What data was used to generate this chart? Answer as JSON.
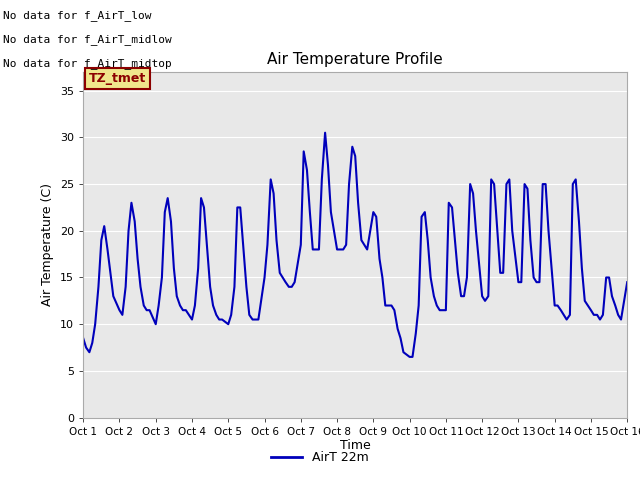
{
  "title": "Air Temperature Profile",
  "xlabel": "Time",
  "ylabel": "Air Temperature (C)",
  "ylim": [
    0,
    37
  ],
  "yticks": [
    0,
    5,
    10,
    15,
    20,
    25,
    30,
    35
  ],
  "line_color": "#0000bb",
  "line_width": 1.5,
  "bg_color": "#e8e8e8",
  "legend_label": "AirT 22m",
  "annotations_outside": [
    "No data for f_AirT_low",
    "No data for f_AirT_midlow",
    "No data for f_AirT_midtop"
  ],
  "tz_tmet_text": "TZ_tmet",
  "x_tick_labels": [
    "Oct 1",
    "Oct 2",
    "Oct 3",
    "Oct 4",
    "Oct 5",
    "Oct 6",
    "Oct 7",
    "Oct 8",
    "Oct 9",
    "Oct 10",
    "Oct 11",
    "Oct 12",
    "Oct 13",
    "Oct 14",
    "Oct 15",
    "Oct 16"
  ],
  "temperature_x": [
    1.0,
    1.08,
    1.17,
    1.25,
    1.33,
    1.42,
    1.5,
    1.58,
    1.67,
    1.75,
    1.83,
    2.0,
    2.08,
    2.17,
    2.25,
    2.33,
    2.42,
    2.5,
    2.58,
    2.67,
    2.75,
    2.83,
    3.0,
    3.08,
    3.17,
    3.25,
    3.33,
    3.42,
    3.5,
    3.58,
    3.67,
    3.75,
    3.83,
    4.0,
    4.08,
    4.17,
    4.25,
    4.33,
    4.42,
    4.5,
    4.58,
    4.67,
    4.75,
    4.83,
    5.0,
    5.08,
    5.17,
    5.25,
    5.33,
    5.42,
    5.5,
    5.58,
    5.67,
    5.75,
    5.83,
    6.0,
    6.08,
    6.17,
    6.25,
    6.33,
    6.42,
    6.5,
    6.58,
    6.67,
    6.75,
    6.83,
    7.0,
    7.08,
    7.17,
    7.25,
    7.33,
    7.42,
    7.5,
    7.58,
    7.67,
    7.75,
    7.83,
    8.0,
    8.08,
    8.17,
    8.25,
    8.33,
    8.42,
    8.5,
    8.58,
    8.67,
    8.75,
    8.83,
    9.0,
    9.08,
    9.17,
    9.25,
    9.33,
    9.42,
    9.5,
    9.58,
    9.67,
    9.75,
    9.83,
    10.0,
    10.08,
    10.17,
    10.25,
    10.33,
    10.42,
    10.5,
    10.58,
    10.67,
    10.75,
    10.83,
    11.0,
    11.08,
    11.17,
    11.25,
    11.33,
    11.42,
    11.5,
    11.58,
    11.67,
    11.75,
    11.83,
    12.0,
    12.08,
    12.17,
    12.25,
    12.33,
    12.42,
    12.5,
    12.58,
    12.67,
    12.75,
    12.83,
    13.0,
    13.08,
    13.17,
    13.25,
    13.33,
    13.42,
    13.5,
    13.58,
    13.67,
    13.75,
    13.83,
    14.0,
    14.08,
    14.17,
    14.25,
    14.33,
    14.42,
    14.5,
    14.58,
    14.67,
    14.75,
    14.83,
    15.0,
    15.08,
    15.17,
    15.25,
    15.33,
    15.42,
    15.5,
    15.58,
    15.67,
    15.75,
    15.83,
    16.0
  ],
  "temperature_y": [
    8.5,
    7.5,
    7.0,
    8.0,
    10.0,
    14.0,
    19.0,
    20.5,
    18.0,
    15.5,
    13.0,
    11.5,
    11.0,
    14.0,
    20.0,
    23.0,
    21.0,
    17.0,
    14.0,
    12.0,
    11.5,
    11.5,
    10.0,
    12.0,
    15.0,
    22.0,
    23.5,
    21.0,
    16.0,
    13.0,
    12.0,
    11.5,
    11.5,
    10.5,
    12.0,
    16.0,
    23.5,
    22.5,
    18.0,
    14.0,
    12.0,
    11.0,
    10.5,
    10.5,
    10.0,
    11.0,
    14.0,
    22.5,
    22.5,
    18.0,
    14.0,
    11.0,
    10.5,
    10.5,
    10.5,
    15.0,
    18.5,
    25.5,
    24.0,
    19.0,
    15.5,
    15.0,
    14.5,
    14.0,
    14.0,
    14.5,
    18.5,
    28.5,
    26.5,
    22.0,
    18.0,
    18.0,
    18.0,
    25.5,
    30.5,
    27.0,
    22.0,
    18.0,
    18.0,
    18.0,
    18.5,
    25.0,
    29.0,
    28.0,
    23.0,
    19.0,
    18.5,
    18.0,
    22.0,
    21.5,
    17.0,
    15.0,
    12.0,
    12.0,
    12.0,
    11.5,
    9.5,
    8.5,
    7.0,
    6.5,
    6.5,
    9.0,
    12.0,
    21.5,
    22.0,
    19.0,
    15.0,
    13.0,
    12.0,
    11.5,
    11.5,
    23.0,
    22.5,
    19.0,
    15.5,
    13.0,
    13.0,
    15.0,
    25.0,
    24.0,
    20.0,
    13.0,
    12.5,
    13.0,
    25.5,
    25.0,
    20.0,
    15.5,
    15.5,
    25.0,
    25.5,
    20.0,
    14.5,
    14.5,
    25.0,
    24.5,
    19.0,
    15.0,
    14.5,
    14.5,
    25.0,
    25.0,
    20.0,
    12.0,
    12.0,
    11.5,
    11.0,
    10.5,
    11.0,
    25.0,
    25.5,
    21.0,
    16.0,
    12.5,
    11.5,
    11.0,
    11.0,
    10.5,
    11.0,
    15.0,
    15.0,
    13.0,
    12.0,
    11.0,
    10.5,
    14.5
  ]
}
